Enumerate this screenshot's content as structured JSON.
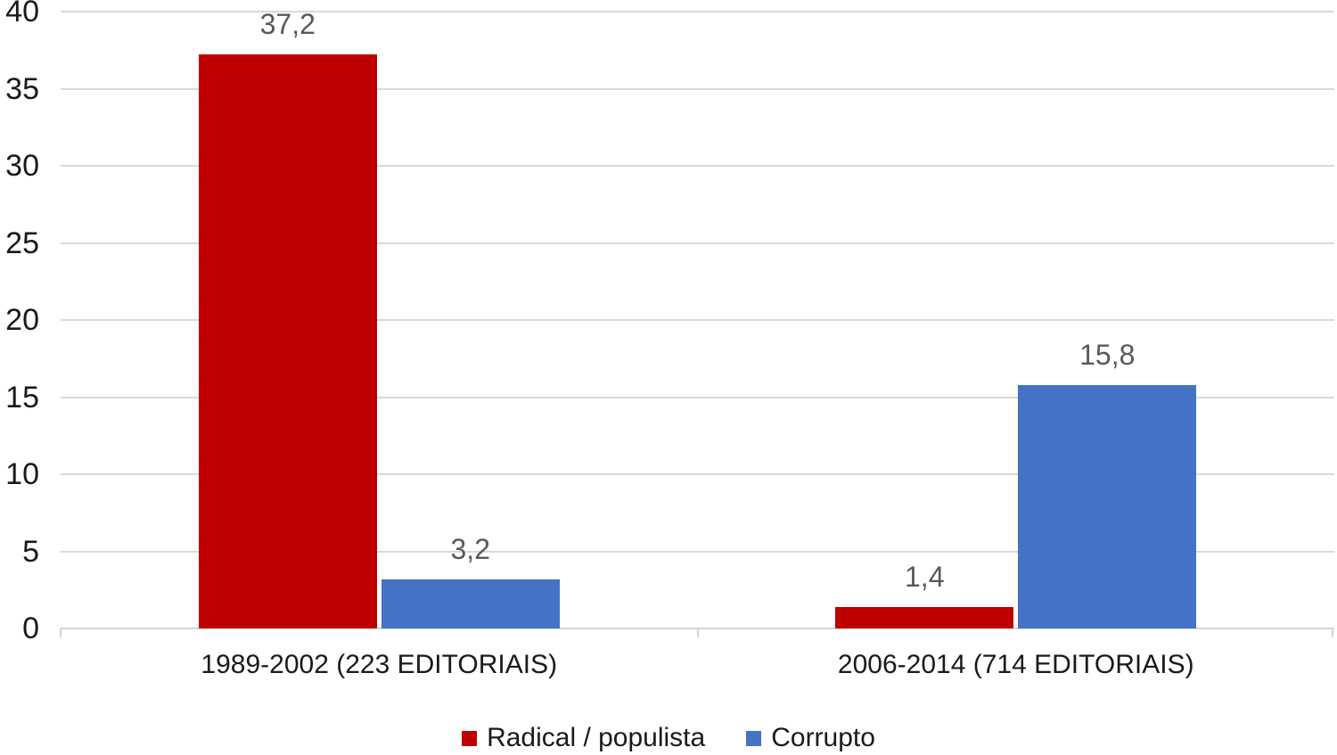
{
  "chart_data": {
    "type": "bar",
    "title": "",
    "xlabel": "",
    "ylabel": "",
    "categories": [
      "1989-2002 (223 EDITORIAIS)",
      "2006-2014 (714 EDITORIAIS)"
    ],
    "series": [
      {
        "name": "Radical / populista",
        "color": "#c00000",
        "values": [
          37.2,
          1.4
        ],
        "value_labels": [
          "37,2",
          "1,4"
        ]
      },
      {
        "name": "Corrupto",
        "color": "#4472c4",
        "values": [
          3.2,
          15.8
        ],
        "value_labels": [
          "3,2",
          "15,8"
        ]
      }
    ],
    "ylim": [
      0,
      40
    ],
    "ytick_step": 5,
    "ytick_labels": [
      "0",
      "5",
      "10",
      "15",
      "20",
      "25",
      "30",
      "35",
      "40"
    ],
    "grid": true,
    "gridline_color": "#d9d9d9",
    "data_label_color": "#595959",
    "axis_text_color": "#1a1a1a",
    "legend_position": "bottom",
    "decimal_separator": ","
  }
}
